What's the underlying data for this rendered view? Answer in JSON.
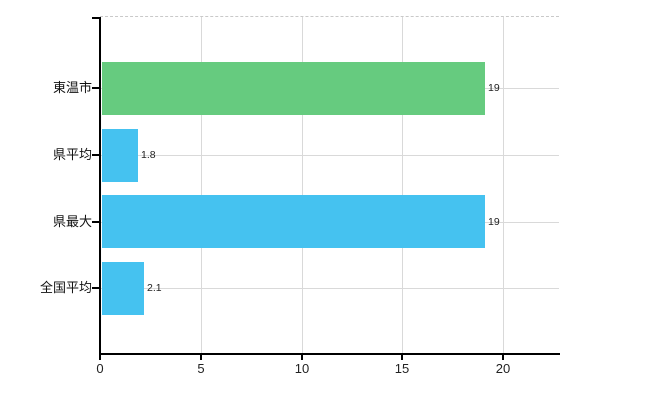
{
  "chart_data": {
    "type": "bar",
    "orientation": "horizontal",
    "title": "",
    "xlabel": "",
    "ylabel": "",
    "categories": [
      "東温市",
      "県平均",
      "県最大",
      "全国平均"
    ],
    "values": [
      19,
      1.8,
      19,
      2.1
    ],
    "value_labels": [
      "19",
      "1.8",
      "19",
      "2.1"
    ],
    "series": [
      {
        "name": "",
        "values": [
          19,
          1.8,
          19,
          2.1
        ]
      }
    ],
    "bar_colors": [
      "#66cb7f",
      "#45c2f0",
      "#45c2f0",
      "#45c2f0"
    ],
    "x_ticks": [
      0,
      5,
      10,
      15,
      20
    ],
    "x_tick_labels": [
      "0",
      "5",
      "10",
      "15",
      "20"
    ],
    "xlim": [
      0,
      22.8
    ],
    "grid": true,
    "legend": false,
    "colors": {
      "green_bar": "#66cb7f",
      "blue_bar": "#45c2f0",
      "gridline": "#d9d9d9",
      "top_border": "#c9c9c9",
      "axis": "#000000",
      "text": "#222222",
      "background": "#ffffff"
    }
  }
}
